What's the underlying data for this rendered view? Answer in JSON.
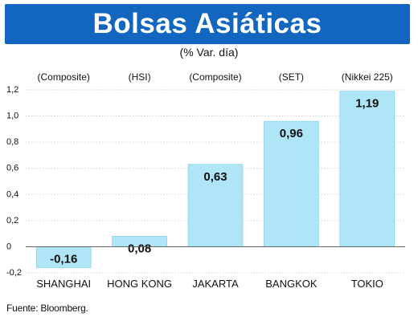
{
  "header": {
    "title": "Bolsas Asiáticas",
    "subtitle": "(% Var. día)"
  },
  "source": "Fuente: Bloomberg.",
  "colors": {
    "title_bg": "#1366c0",
    "bar_fill": "#aee5f7",
    "bar_stroke": "#7ccbe8",
    "grid": "#c8c8c8"
  },
  "chart_data": {
    "type": "bar",
    "title": "Bolsas Asiáticas",
    "subtitle": "(% Var. día)",
    "categories": [
      "SHANGHAI",
      "HONG KONG",
      "JAKARTA",
      "BANGKOK",
      "TOKIO"
    ],
    "index_labels": [
      "(Composite)",
      "(HSI)",
      "(Composite)",
      "(SET)",
      "(Nikkei 225)"
    ],
    "values": [
      -0.16,
      0.08,
      0.63,
      0.96,
      1.19
    ],
    "value_labels": [
      "-0,16",
      "0,08",
      "0,63",
      "0,96",
      "1,19"
    ],
    "yticks": [
      -0.2,
      0,
      0.2,
      0.4,
      0.6,
      0.8,
      1.0,
      1.2
    ],
    "ytick_labels": [
      "-0,2",
      "0",
      "0,2",
      "0,4",
      "0,6",
      "0,8",
      "1,0",
      "1,2"
    ],
    "ylim": [
      -0.2,
      1.2
    ],
    "grid": true,
    "xlabel": "",
    "ylabel": ""
  }
}
